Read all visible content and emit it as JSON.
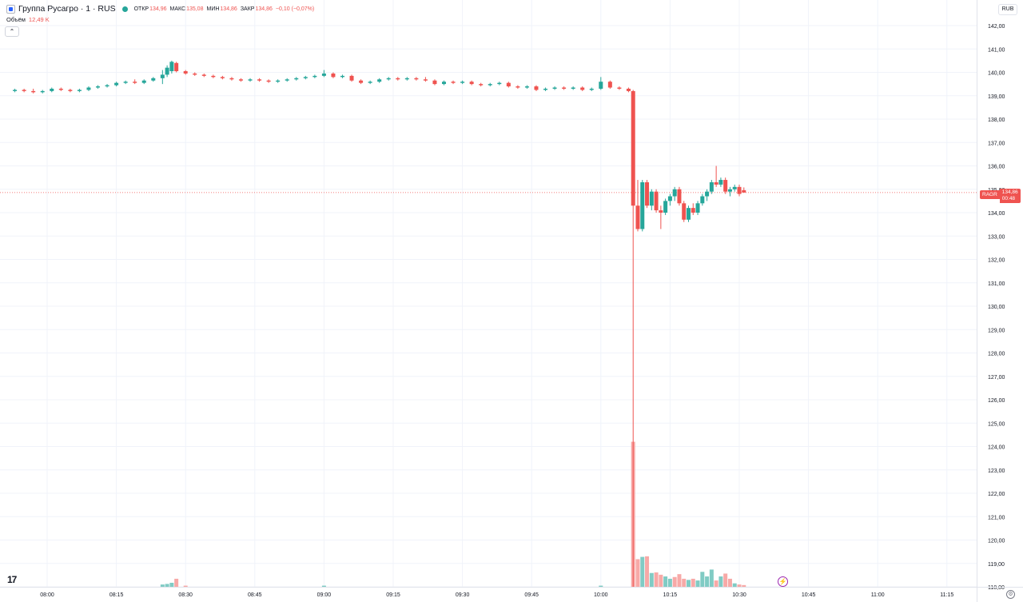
{
  "legend": {
    "symbol": "Группа Русагро · 1 · RUS",
    "open_label": "ОТКР",
    "open": "134,96",
    "high_label": "МАКС",
    "high": "135,08",
    "low_label": "МИН",
    "low": "134,86",
    "close_label": "ЗАКР",
    "close": "134,86",
    "change": "−0,10 (−0,07%)"
  },
  "volume_legend": {
    "label": "Объём",
    "value": "12,49 K"
  },
  "currency": "RUB",
  "price_tag": {
    "ticker": "RAGR",
    "price": "134,86",
    "countdown": "00:48"
  },
  "tv_logo": "17",
  "colors": {
    "up": "#26a69a",
    "down": "#ef5350",
    "up_vol": "#80cbc4",
    "down_vol": "#f7a9a7",
    "grid": "#f0f3fa"
  },
  "chart_data": {
    "type": "candlestick",
    "x_labels": [
      "08:00",
      "08:15",
      "08:30",
      "08:45",
      "09:00",
      "09:15",
      "09:30",
      "09:45",
      "10:00",
      "10:15",
      "10:30",
      "10:45",
      "11:00",
      "11:15"
    ],
    "y_ticks": [
      "118,00",
      "119,00",
      "120,00",
      "121,00",
      "122,00",
      "123,00",
      "124,00",
      "125,00",
      "126,00",
      "127,00",
      "128,00",
      "129,00",
      "130,00",
      "131,00",
      "132,00",
      "133,00",
      "134,00",
      "135,00",
      "136,00",
      "137,00",
      "138,00",
      "139,00",
      "140,00",
      "141,00",
      "142,00"
    ],
    "ylim": [
      118,
      142
    ],
    "last_price": 134.86,
    "candles": [
      {
        "t": "07:53",
        "o": 139.2,
        "h": 139.3,
        "l": 139.15,
        "c": 139.25
      },
      {
        "t": "07:55",
        "o": 139.25,
        "h": 139.3,
        "l": 139.15,
        "c": 139.2
      },
      {
        "t": "07:57",
        "o": 139.2,
        "h": 139.3,
        "l": 139.1,
        "c": 139.15
      },
      {
        "t": "07:59",
        "o": 139.15,
        "h": 139.25,
        "l": 139.1,
        "c": 139.2
      },
      {
        "t": "08:01",
        "o": 139.2,
        "h": 139.35,
        "l": 139.15,
        "c": 139.3
      },
      {
        "t": "08:03",
        "o": 139.3,
        "h": 139.35,
        "l": 139.2,
        "c": 139.25
      },
      {
        "t": "08:05",
        "o": 139.25,
        "h": 139.3,
        "l": 139.15,
        "c": 139.2
      },
      {
        "t": "08:07",
        "o": 139.2,
        "h": 139.3,
        "l": 139.15,
        "c": 139.25
      },
      {
        "t": "08:09",
        "o": 139.25,
        "h": 139.4,
        "l": 139.2,
        "c": 139.35
      },
      {
        "t": "08:11",
        "o": 139.35,
        "h": 139.45,
        "l": 139.3,
        "c": 139.4
      },
      {
        "t": "08:13",
        "o": 139.4,
        "h": 139.5,
        "l": 139.35,
        "c": 139.45
      },
      {
        "t": "08:15",
        "o": 139.45,
        "h": 139.6,
        "l": 139.4,
        "c": 139.55
      },
      {
        "t": "08:17",
        "o": 139.55,
        "h": 139.65,
        "l": 139.5,
        "c": 139.6
      },
      {
        "t": "08:19",
        "o": 139.6,
        "h": 139.7,
        "l": 139.5,
        "c": 139.55
      },
      {
        "t": "08:21",
        "o": 139.55,
        "h": 139.7,
        "l": 139.5,
        "c": 139.65
      },
      {
        "t": "08:23",
        "o": 139.65,
        "h": 139.8,
        "l": 139.6,
        "c": 139.75
      },
      {
        "t": "08:25",
        "o": 139.75,
        "h": 140.1,
        "l": 139.5,
        "c": 139.9
      },
      {
        "t": "08:26",
        "o": 139.9,
        "h": 140.3,
        "l": 139.8,
        "c": 140.2
      },
      {
        "t": "08:27",
        "o": 140.05,
        "h": 140.5,
        "l": 139.95,
        "c": 140.45
      },
      {
        "t": "08:28",
        "o": 140.4,
        "h": 140.45,
        "l": 140.0,
        "c": 140.05
      },
      {
        "t": "08:30",
        "o": 140.05,
        "h": 140.1,
        "l": 139.9,
        "c": 139.95
      },
      {
        "t": "08:32",
        "o": 139.95,
        "h": 140.0,
        "l": 139.85,
        "c": 139.9
      },
      {
        "t": "08:34",
        "o": 139.9,
        "h": 139.95,
        "l": 139.8,
        "c": 139.85
      },
      {
        "t": "08:36",
        "o": 139.85,
        "h": 139.9,
        "l": 139.75,
        "c": 139.8
      },
      {
        "t": "08:38",
        "o": 139.8,
        "h": 139.85,
        "l": 139.7,
        "c": 139.75
      },
      {
        "t": "08:40",
        "o": 139.75,
        "h": 139.8,
        "l": 139.65,
        "c": 139.7
      },
      {
        "t": "08:42",
        "o": 139.7,
        "h": 139.75,
        "l": 139.6,
        "c": 139.65
      },
      {
        "t": "08:44",
        "o": 139.65,
        "h": 139.75,
        "l": 139.6,
        "c": 139.7
      },
      {
        "t": "08:46",
        "o": 139.7,
        "h": 139.75,
        "l": 139.6,
        "c": 139.65
      },
      {
        "t": "08:48",
        "o": 139.65,
        "h": 139.7,
        "l": 139.55,
        "c": 139.6
      },
      {
        "t": "08:50",
        "o": 139.6,
        "h": 139.7,
        "l": 139.55,
        "c": 139.65
      },
      {
        "t": "08:52",
        "o": 139.65,
        "h": 139.75,
        "l": 139.6,
        "c": 139.7
      },
      {
        "t": "08:54",
        "o": 139.7,
        "h": 139.8,
        "l": 139.65,
        "c": 139.75
      },
      {
        "t": "08:56",
        "o": 139.75,
        "h": 139.85,
        "l": 139.7,
        "c": 139.8
      },
      {
        "t": "08:58",
        "o": 139.8,
        "h": 139.9,
        "l": 139.75,
        "c": 139.85
      },
      {
        "t": "09:00",
        "o": 139.85,
        "h": 140.1,
        "l": 139.8,
        "c": 139.95
      },
      {
        "t": "09:02",
        "o": 139.95,
        "h": 140.0,
        "l": 139.75,
        "c": 139.8
      },
      {
        "t": "09:04",
        "o": 139.8,
        "h": 139.9,
        "l": 139.75,
        "c": 139.85
      },
      {
        "t": "09:06",
        "o": 139.85,
        "h": 139.9,
        "l": 139.6,
        "c": 139.65
      },
      {
        "t": "09:08",
        "o": 139.65,
        "h": 139.7,
        "l": 139.5,
        "c": 139.55
      },
      {
        "t": "09:10",
        "o": 139.55,
        "h": 139.65,
        "l": 139.5,
        "c": 139.6
      },
      {
        "t": "09:12",
        "o": 139.6,
        "h": 139.75,
        "l": 139.55,
        "c": 139.7
      },
      {
        "t": "09:14",
        "o": 139.7,
        "h": 139.8,
        "l": 139.65,
        "c": 139.75
      },
      {
        "t": "09:16",
        "o": 139.75,
        "h": 139.8,
        "l": 139.65,
        "c": 139.7
      },
      {
        "t": "09:18",
        "o": 139.7,
        "h": 139.8,
        "l": 139.65,
        "c": 139.75
      },
      {
        "t": "09:20",
        "o": 139.75,
        "h": 139.8,
        "l": 139.65,
        "c": 139.7
      },
      {
        "t": "09:22",
        "o": 139.7,
        "h": 139.8,
        "l": 139.6,
        "c": 139.65
      },
      {
        "t": "09:24",
        "o": 139.65,
        "h": 139.7,
        "l": 139.45,
        "c": 139.5
      },
      {
        "t": "09:26",
        "o": 139.5,
        "h": 139.65,
        "l": 139.45,
        "c": 139.6
      },
      {
        "t": "09:28",
        "o": 139.6,
        "h": 139.65,
        "l": 139.5,
        "c": 139.55
      },
      {
        "t": "09:30",
        "o": 139.55,
        "h": 139.65,
        "l": 139.5,
        "c": 139.6
      },
      {
        "t": "09:32",
        "o": 139.6,
        "h": 139.65,
        "l": 139.45,
        "c": 139.5
      },
      {
        "t": "09:34",
        "o": 139.5,
        "h": 139.55,
        "l": 139.4,
        "c": 139.45
      },
      {
        "t": "09:36",
        "o": 139.45,
        "h": 139.55,
        "l": 139.4,
        "c": 139.5
      },
      {
        "t": "09:38",
        "o": 139.5,
        "h": 139.6,
        "l": 139.45,
        "c": 139.55
      },
      {
        "t": "09:40",
        "o": 139.55,
        "h": 139.6,
        "l": 139.35,
        "c": 139.4
      },
      {
        "t": "09:42",
        "o": 139.4,
        "h": 139.45,
        "l": 139.3,
        "c": 139.35
      },
      {
        "t": "09:44",
        "o": 139.35,
        "h": 139.45,
        "l": 139.3,
        "c": 139.4
      },
      {
        "t": "09:46",
        "o": 139.4,
        "h": 139.45,
        "l": 139.2,
        "c": 139.25
      },
      {
        "t": "09:48",
        "o": 139.25,
        "h": 139.35,
        "l": 139.2,
        "c": 139.3
      },
      {
        "t": "09:50",
        "o": 139.3,
        "h": 139.4,
        "l": 139.25,
        "c": 139.35
      },
      {
        "t": "09:52",
        "o": 139.35,
        "h": 139.4,
        "l": 139.25,
        "c": 139.3
      },
      {
        "t": "09:54",
        "o": 139.3,
        "h": 139.4,
        "l": 139.25,
        "c": 139.35
      },
      {
        "t": "09:56",
        "o": 139.35,
        "h": 139.4,
        "l": 139.2,
        "c": 139.25
      },
      {
        "t": "09:58",
        "o": 139.25,
        "h": 139.35,
        "l": 139.2,
        "c": 139.3
      },
      {
        "t": "10:00",
        "o": 139.3,
        "h": 139.8,
        "l": 139.25,
        "c": 139.6
      },
      {
        "t": "10:02",
        "o": 139.6,
        "h": 139.65,
        "l": 139.3,
        "c": 139.35
      },
      {
        "t": "10:04",
        "o": 139.35,
        "h": 139.4,
        "l": 139.25,
        "c": 139.3
      },
      {
        "t": "10:06",
        "o": 139.3,
        "h": 139.35,
        "l": 139.15,
        "c": 139.2
      },
      {
        "t": "10:07",
        "o": 139.2,
        "h": 139.25,
        "l": 118.0,
        "c": 134.3
      },
      {
        "t": "10:08",
        "o": 134.3,
        "h": 135.4,
        "l": 133.2,
        "c": 133.3
      },
      {
        "t": "10:09",
        "o": 133.3,
        "h": 135.4,
        "l": 133.2,
        "c": 135.3
      },
      {
        "t": "10:10",
        "o": 135.3,
        "h": 135.4,
        "l": 134.2,
        "c": 134.3
      },
      {
        "t": "10:11",
        "o": 134.3,
        "h": 135.0,
        "l": 134.1,
        "c": 134.9
      },
      {
        "t": "10:12",
        "o": 134.9,
        "h": 135.0,
        "l": 134.0,
        "c": 134.1
      },
      {
        "t": "10:13",
        "o": 134.1,
        "h": 134.3,
        "l": 133.3,
        "c": 134.0
      },
      {
        "t": "10:14",
        "o": 134.0,
        "h": 134.6,
        "l": 133.9,
        "c": 134.5
      },
      {
        "t": "10:15",
        "o": 134.5,
        "h": 134.8,
        "l": 134.3,
        "c": 134.7
      },
      {
        "t": "10:16",
        "o": 134.7,
        "h": 135.1,
        "l": 134.5,
        "c": 135.0
      },
      {
        "t": "10:17",
        "o": 135.0,
        "h": 135.1,
        "l": 134.3,
        "c": 134.4
      },
      {
        "t": "10:18",
        "o": 134.4,
        "h": 134.5,
        "l": 133.6,
        "c": 133.7
      },
      {
        "t": "10:19",
        "o": 133.7,
        "h": 134.3,
        "l": 133.6,
        "c": 134.2
      },
      {
        "t": "10:20",
        "o": 134.2,
        "h": 134.4,
        "l": 133.9,
        "c": 134.0
      },
      {
        "t": "10:21",
        "o": 134.0,
        "h": 134.5,
        "l": 133.9,
        "c": 134.4
      },
      {
        "t": "10:22",
        "o": 134.4,
        "h": 134.8,
        "l": 134.3,
        "c": 134.7
      },
      {
        "t": "10:23",
        "o": 134.7,
        "h": 135.0,
        "l": 134.5,
        "c": 134.9
      },
      {
        "t": "10:24",
        "o": 134.9,
        "h": 135.4,
        "l": 134.8,
        "c": 135.3
      },
      {
        "t": "10:25",
        "o": 135.3,
        "h": 136.0,
        "l": 135.1,
        "c": 135.2
      },
      {
        "t": "10:26",
        "o": 135.2,
        "h": 135.5,
        "l": 135.1,
        "c": 135.4
      },
      {
        "t": "10:27",
        "o": 135.4,
        "h": 135.5,
        "l": 134.8,
        "c": 134.9
      },
      {
        "t": "10:28",
        "o": 134.9,
        "h": 135.1,
        "l": 134.7,
        "c": 135.0
      },
      {
        "t": "10:29",
        "o": 135.0,
        "h": 135.2,
        "l": 134.9,
        "c": 135.1
      },
      {
        "t": "10:30",
        "o": 135.1,
        "h": 135.2,
        "l": 134.7,
        "c": 134.8
      },
      {
        "t": "10:31",
        "o": 134.96,
        "h": 135.08,
        "l": 134.86,
        "c": 134.86
      }
    ],
    "volume": [
      {
        "t": "08:25",
        "v": 4,
        "up": true
      },
      {
        "t": "08:26",
        "v": 5,
        "up": true
      },
      {
        "t": "08:27",
        "v": 7,
        "up": true
      },
      {
        "t": "08:28",
        "v": 14,
        "up": false
      },
      {
        "t": "08:30",
        "v": 2,
        "up": false
      },
      {
        "t": "09:00",
        "v": 2,
        "up": true
      },
      {
        "t": "10:00",
        "v": 2,
        "up": true
      },
      {
        "t": "10:07",
        "v": 252,
        "up": false
      },
      {
        "t": "10:08",
        "v": 48,
        "up": false
      },
      {
        "t": "10:09",
        "v": 52,
        "up": true
      },
      {
        "t": "10:10",
        "v": 53,
        "up": false
      },
      {
        "t": "10:11",
        "v": 24,
        "up": true
      },
      {
        "t": "10:12",
        "v": 25,
        "up": false
      },
      {
        "t": "10:13",
        "v": 21,
        "up": false
      },
      {
        "t": "10:14",
        "v": 18,
        "up": true
      },
      {
        "t": "10:15",
        "v": 14,
        "up": true
      },
      {
        "t": "10:16",
        "v": 17,
        "up": false
      },
      {
        "t": "10:17",
        "v": 22,
        "up": false
      },
      {
        "t": "10:18",
        "v": 14,
        "up": false
      },
      {
        "t": "10:19",
        "v": 12,
        "up": true
      },
      {
        "t": "10:20",
        "v": 14,
        "up": false
      },
      {
        "t": "10:21",
        "v": 11,
        "up": true
      },
      {
        "t": "10:22",
        "v": 26,
        "up": true
      },
      {
        "t": "10:23",
        "v": 18,
        "up": true
      },
      {
        "t": "10:24",
        "v": 30,
        "up": true
      },
      {
        "t": "10:25",
        "v": 11,
        "up": false
      },
      {
        "t": "10:26",
        "v": 18,
        "up": true
      },
      {
        "t": "10:27",
        "v": 23,
        "up": false
      },
      {
        "t": "10:28",
        "v": 14,
        "up": false
      },
      {
        "t": "10:29",
        "v": 6,
        "up": true
      },
      {
        "t": "10:30",
        "v": 4,
        "up": false
      },
      {
        "t": "10:31",
        "v": 3,
        "up": false
      }
    ]
  }
}
